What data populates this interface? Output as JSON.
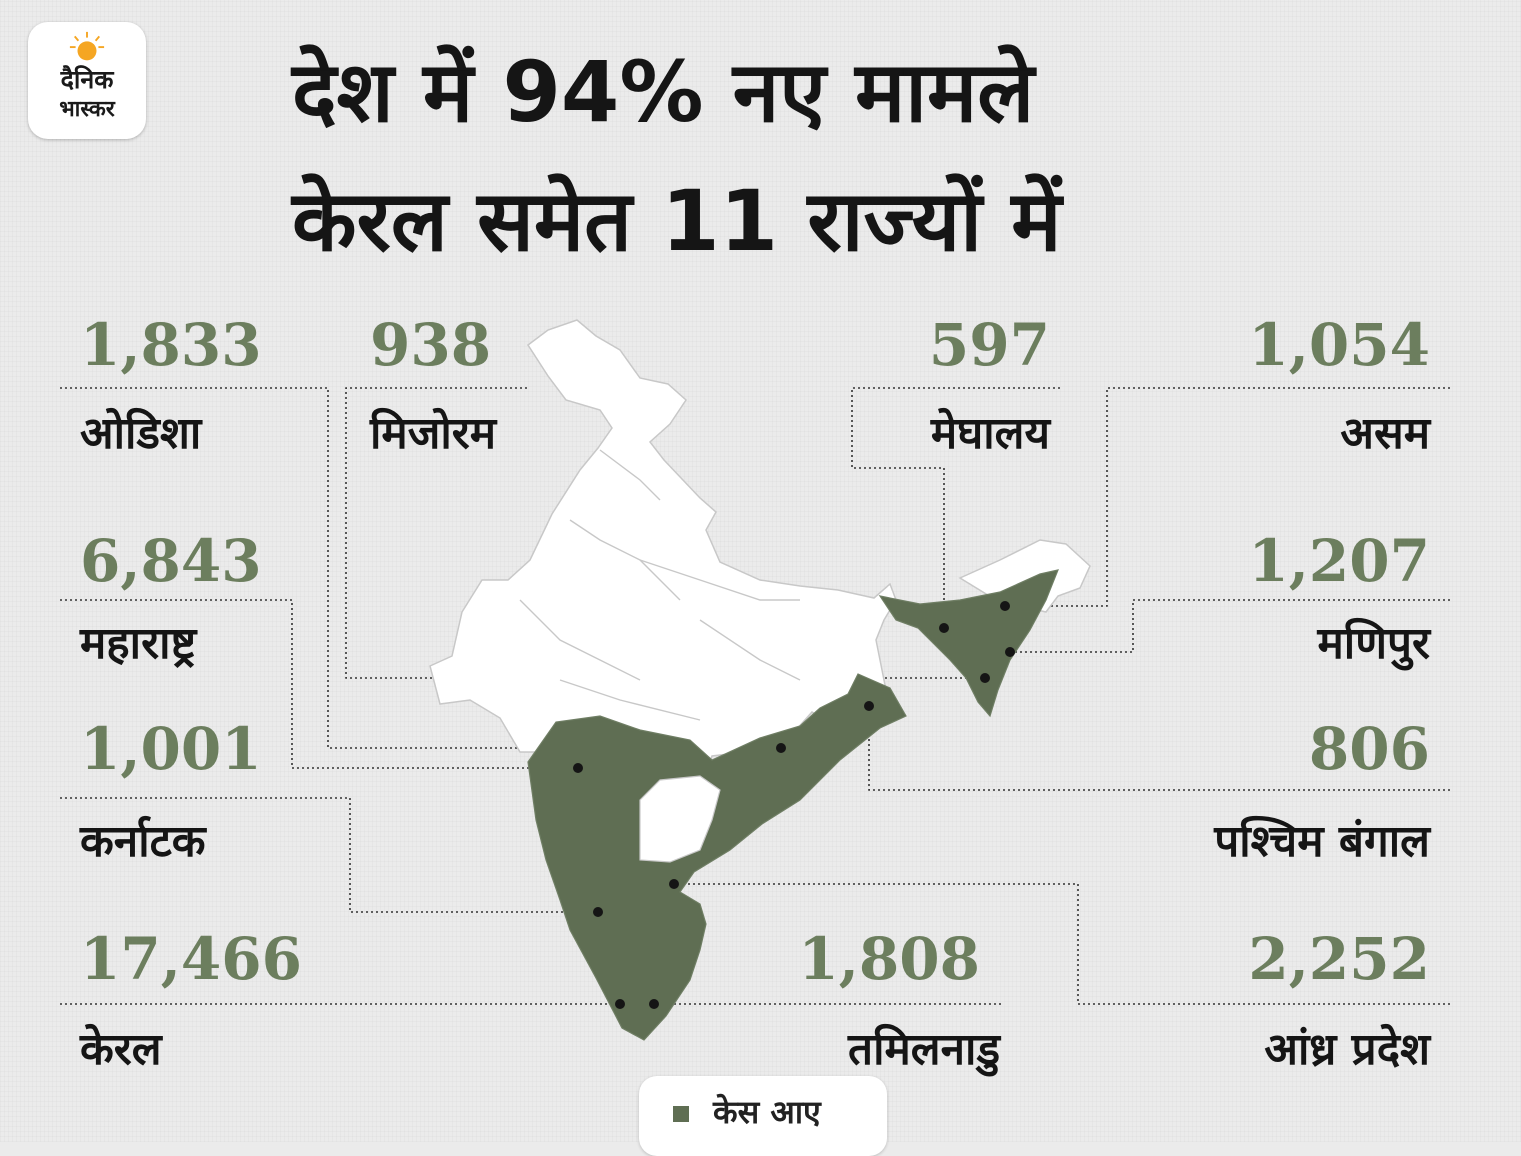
{
  "brand": {
    "line1": "दैनिक",
    "line2": "भास्कर"
  },
  "headline": {
    "line1": "देश में 94% नए मामले",
    "line2": "केरल समेत 11 राज्यों में"
  },
  "colors": {
    "highlight": "#5f6e53",
    "number": "#6c7e5e",
    "unaffected": "#ffffff"
  },
  "states": [
    {
      "name": "ओडिशा",
      "value": "1,833"
    },
    {
      "name": "मिजोरम",
      "value": "938"
    },
    {
      "name": "मेघालय",
      "value": "597"
    },
    {
      "name": "असम",
      "value": "1,054"
    },
    {
      "name": "महाराष्ट्र",
      "value": "6,843"
    },
    {
      "name": "मणिपुर",
      "value": "1,207"
    },
    {
      "name": "कर्नाटक",
      "value": "1,001"
    },
    {
      "name": "पश्चिम बंगाल",
      "value": "806"
    },
    {
      "name": "केरल",
      "value": "17,466"
    },
    {
      "name": "तमिलनाडु",
      "value": "1,808"
    },
    {
      "name": "आंध्र प्रदेश",
      "value": "2,252"
    }
  ],
  "legend": {
    "label": "केस आए"
  }
}
